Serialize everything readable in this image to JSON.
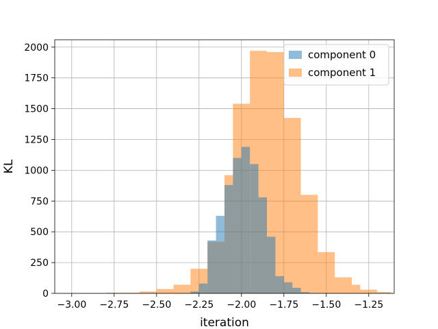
{
  "chart_data": {
    "type": "bar",
    "xlabel": "iteration",
    "ylabel": "KL",
    "xlim": [
      -3.1,
      -1.1
    ],
    "ylim": [
      0,
      2060
    ],
    "grid": true,
    "legend_position": "top-right",
    "x_ticks": [
      -3.0,
      -2.75,
      -2.5,
      -2.25,
      -2.0,
      -1.75,
      -1.5,
      -1.25
    ],
    "x_tick_labels": [
      "−3.00",
      "−2.75",
      "−2.50",
      "−2.25",
      "−2.00",
      "−1.75",
      "−1.50",
      "−1.25"
    ],
    "y_ticks": [
      0,
      250,
      500,
      750,
      1000,
      1250,
      1500,
      1750,
      2000
    ],
    "y_tick_labels": [
      "0",
      "250",
      "500",
      "750",
      "1000",
      "1250",
      "1500",
      "1750",
      "2000"
    ],
    "series": [
      {
        "name": "component 1",
        "color": "#ff7f0e",
        "opacity": 0.5,
        "bins": [
          {
            "x0": -3.0,
            "x1": -2.9,
            "value": 1
          },
          {
            "x0": -2.9,
            "x1": -2.8,
            "value": 2
          },
          {
            "x0": -2.8,
            "x1": -2.6,
            "value": 5
          },
          {
            "x0": -2.6,
            "x1": -2.5,
            "value": 15
          },
          {
            "x0": -2.5,
            "x1": -2.4,
            "value": 35
          },
          {
            "x0": -2.4,
            "x1": -2.3,
            "value": 70
          },
          {
            "x0": -2.3,
            "x1": -2.2,
            "value": 200
          },
          {
            "x0": -2.2,
            "x1": -2.1,
            "value": 420
          },
          {
            "x0": -2.1,
            "x1": -2.05,
            "value": 960
          },
          {
            "x0": -2.05,
            "x1": -1.95,
            "value": 1540
          },
          {
            "x0": -1.95,
            "x1": -1.85,
            "value": 1970
          },
          {
            "x0": -1.85,
            "x1": -1.75,
            "value": 1960
          },
          {
            "x0": -1.75,
            "x1": -1.65,
            "value": 1425
          },
          {
            "x0": -1.65,
            "x1": -1.55,
            "value": 800
          },
          {
            "x0": -1.55,
            "x1": -1.45,
            "value": 335
          },
          {
            "x0": -1.45,
            "x1": -1.35,
            "value": 130
          },
          {
            "x0": -1.35,
            "x1": -1.3,
            "value": 70
          },
          {
            "x0": -1.3,
            "x1": -1.2,
            "value": 30
          },
          {
            "x0": -1.2,
            "x1": -1.12,
            "value": 10
          }
        ]
      },
      {
        "name": "component 0",
        "color": "#1f77b4",
        "opacity": 0.5,
        "bins": [
          {
            "x0": -2.3,
            "x1": -2.25,
            "value": 15
          },
          {
            "x0": -2.25,
            "x1": -2.2,
            "value": 80
          },
          {
            "x0": -2.2,
            "x1": -2.15,
            "value": 430
          },
          {
            "x0": -2.15,
            "x1": -2.1,
            "value": 630
          },
          {
            "x0": -2.1,
            "x1": -2.05,
            "value": 880
          },
          {
            "x0": -2.05,
            "x1": -2.0,
            "value": 1100
          },
          {
            "x0": -2.0,
            "x1": -1.95,
            "value": 1190
          },
          {
            "x0": -1.95,
            "x1": -1.9,
            "value": 1050
          },
          {
            "x0": -1.9,
            "x1": -1.85,
            "value": 780
          },
          {
            "x0": -1.85,
            "x1": -1.8,
            "value": 460
          },
          {
            "x0": -1.8,
            "x1": -1.75,
            "value": 140
          },
          {
            "x0": -1.75,
            "x1": -1.7,
            "value": 90
          },
          {
            "x0": -1.7,
            "x1": -1.65,
            "value": 45
          },
          {
            "x0": -1.65,
            "x1": -1.6,
            "value": 10
          }
        ]
      }
    ]
  },
  "legend": {
    "items": [
      {
        "label": "component 0",
        "color": "#1f77b4"
      },
      {
        "label": "component 1",
        "color": "#ff7f0e"
      }
    ]
  }
}
